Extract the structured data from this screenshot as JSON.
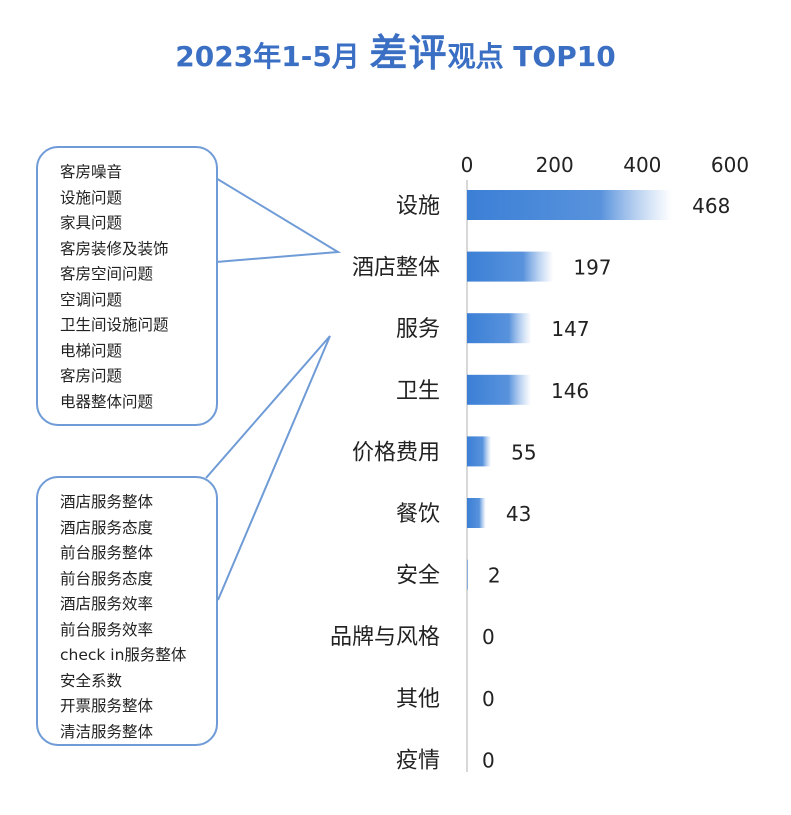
{
  "title": {
    "part1": "2023年1-5月 ",
    "part2": "差评",
    "part3": "观点 TOP10"
  },
  "callouts": {
    "top_items": [
      "客房噪音",
      "设施问题",
      "家具问题",
      "客房装修及装饰",
      "客房空间问题",
      "空调问题",
      "卫生间设施问题",
      "电梯问题",
      "客房问题",
      "电器整体问题"
    ],
    "bottom_items": [
      "酒店服务整体",
      "酒店服务态度",
      "前台服务整体",
      "前台服务态度",
      "酒店服务效率",
      "前台服务效率",
      "check in服务整体",
      "安全系数",
      "开票服务整体",
      "清洁服务整体"
    ]
  },
  "colors": {
    "bar": "#3b7fd6",
    "bar_fade": "#ffffff",
    "title": "#3a6fc4",
    "bubble_border": "#6f9bd6",
    "axis": "#cccccc"
  },
  "chart_data": {
    "type": "bar",
    "orientation": "horizontal",
    "title": "2023年1-5月 差评观点 TOP10",
    "categories": [
      "设施",
      "酒店整体",
      "服务",
      "卫生",
      "价格费用",
      "餐饮",
      "安全",
      "品牌与风格",
      "其他",
      "疫情"
    ],
    "values": [
      468,
      197,
      147,
      146,
      55,
      43,
      2,
      0,
      0,
      0
    ],
    "xticks": [
      0,
      200,
      400,
      600
    ],
    "xlim": [
      0,
      600
    ],
    "axis_position": "top",
    "grid": false,
    "legend": "none"
  }
}
